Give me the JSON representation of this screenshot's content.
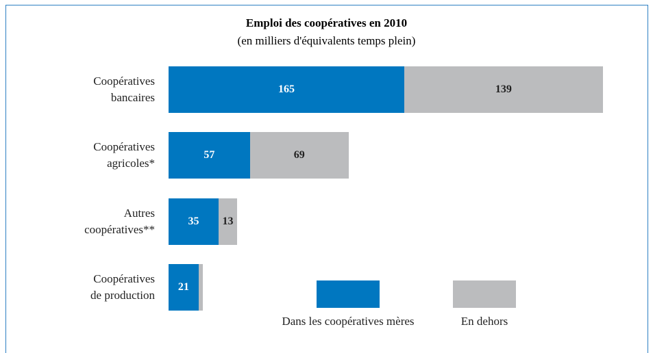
{
  "chart_data": {
    "type": "stacked_bar_horizontal",
    "title": "Emploi des coopératives en 2010",
    "subtitle": "(en milliers d'équivalents temps plein)",
    "categories": [
      "Coopératives\nbancaires",
      "Coopératives\nagricoles*",
      "Autres\ncoopératives**",
      "Coopératives\nde production"
    ],
    "series": [
      {
        "name": "Dans les coopératives mères",
        "color": "#0077c0",
        "values": [
          165,
          57,
          35,
          21
        ]
      },
      {
        "name": "En dehors",
        "color": "#bbbcbe",
        "values": [
          139,
          69,
          13,
          3
        ]
      }
    ],
    "xlim": [
      0,
      300
    ]
  }
}
